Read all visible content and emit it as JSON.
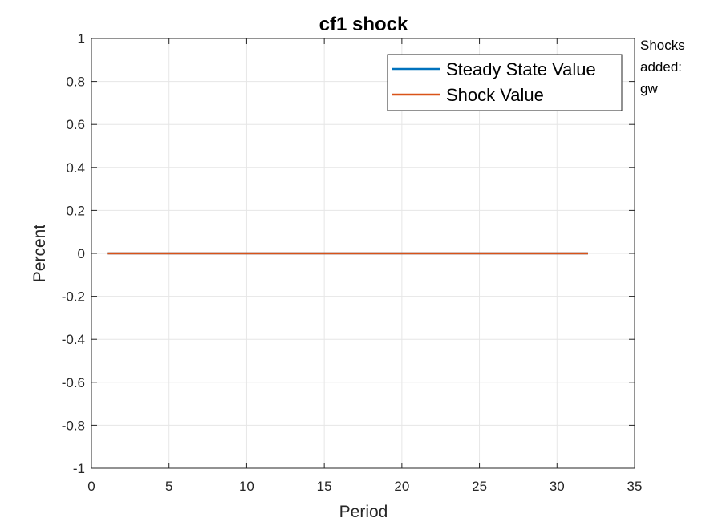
{
  "chart_data": {
    "type": "line",
    "title": "cf1 shock",
    "xlabel": "Period",
    "ylabel": "Percent",
    "xlim": [
      0,
      35
    ],
    "ylim": [
      -1,
      1
    ],
    "xticks": [
      0,
      5,
      10,
      15,
      20,
      25,
      30,
      35
    ],
    "yticks": [
      -1,
      -0.8,
      -0.6,
      -0.4,
      -0.2,
      0,
      0.2,
      0.4,
      0.6,
      0.8,
      1
    ],
    "xtick_labels": [
      "0",
      "5",
      "10",
      "15",
      "20",
      "25",
      "30",
      "35"
    ],
    "ytick_labels": [
      "-1",
      "-0.8",
      "-0.6",
      "-0.4",
      "-0.2",
      "0",
      "0.2",
      "0.4",
      "0.6",
      "0.8",
      "1"
    ],
    "grid": true,
    "legend_position": "top-right",
    "x": [
      1,
      2,
      3,
      4,
      5,
      6,
      7,
      8,
      9,
      10,
      11,
      12,
      13,
      14,
      15,
      16,
      17,
      18,
      19,
      20,
      21,
      22,
      23,
      24,
      25,
      26,
      27,
      28,
      29,
      30,
      31,
      32
    ],
    "series": [
      {
        "name": "Steady State Value",
        "color": "#0072BD",
        "values": [
          0,
          0,
          0,
          0,
          0,
          0,
          0,
          0,
          0,
          0,
          0,
          0,
          0,
          0,
          0,
          0,
          0,
          0,
          0,
          0,
          0,
          0,
          0,
          0,
          0,
          0,
          0,
          0,
          0,
          0,
          0,
          0
        ]
      },
      {
        "name": "Shock Value",
        "color": "#D95319",
        "values": [
          0,
          0,
          0,
          0,
          0,
          0,
          0,
          0,
          0,
          0,
          0,
          0,
          0,
          0,
          0,
          0,
          0,
          0,
          0,
          0,
          0,
          0,
          0,
          0,
          0,
          0,
          0,
          0,
          0,
          0,
          0,
          0
        ]
      }
    ]
  },
  "annotation": {
    "lines": [
      "Shocks",
      "added:",
      "gw"
    ]
  }
}
